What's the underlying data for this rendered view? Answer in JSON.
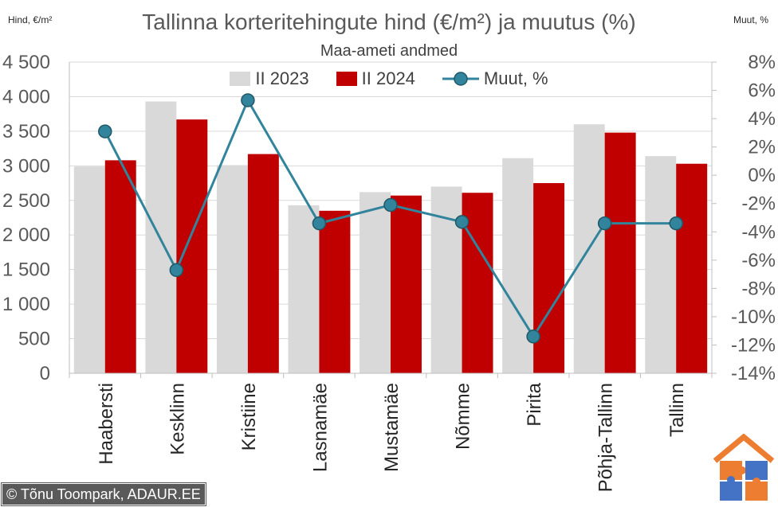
{
  "chart_data": {
    "type": "bar",
    "title": "Tallinna korteritehingute hind (€/m²) ja muutus (%)",
    "subtitle": "Maa-ameti andmed",
    "ylabel": "Hind, €/m²",
    "y2label": "Muut, %",
    "ylim": [
      0,
      4500
    ],
    "y2lim": [
      -14,
      8
    ],
    "yticks": [
      "0",
      "500",
      "1 000",
      "1 500",
      "2 000",
      "2 500",
      "3 000",
      "3 500",
      "4 000",
      "4 500"
    ],
    "y2ticks": [
      "-14%",
      "-12%",
      "-10%",
      "-8%",
      "-6%",
      "-4%",
      "-2%",
      "0%",
      "2%",
      "4%",
      "6%",
      "8%"
    ],
    "grid": true,
    "legend_position": "top",
    "categories": [
      "Haabersti",
      "Kesklinn",
      "Kristiine",
      "Lasnamäe",
      "Mustamäe",
      "Nõmme",
      "Pirita",
      "Põhja-Tallinn",
      "Tallinn"
    ],
    "series": [
      {
        "name": "II 2023",
        "type": "bar",
        "color": "#d9d9d9",
        "values": [
          2990,
          3930,
          3010,
          2430,
          2620,
          2700,
          3110,
          3600,
          3140
        ]
      },
      {
        "name": "II 2024",
        "type": "bar",
        "color": "#c00000",
        "values": [
          3080,
          3670,
          3170,
          2350,
          2570,
          2610,
          2750,
          3480,
          3030
        ]
      },
      {
        "name": "Muut, %",
        "type": "line",
        "axis": "right",
        "color": "#31849b",
        "values": [
          3.1,
          -6.7,
          5.3,
          -3.4,
          -2.1,
          -3.3,
          -11.4,
          -3.4,
          -3.4
        ]
      }
    ]
  },
  "footer": {
    "copyright": "© Tõnu Toompark, ADAUR.EE"
  },
  "logo": {
    "icon": "house-puzzle-logo-icon"
  }
}
